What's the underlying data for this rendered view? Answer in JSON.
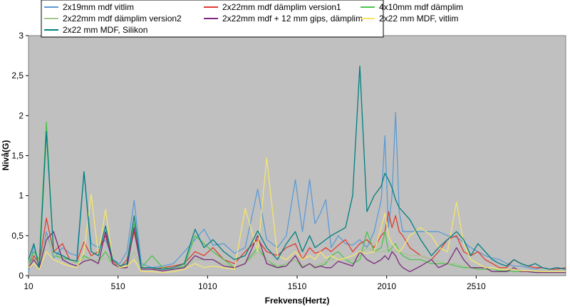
{
  "chart_data": {
    "type": "line",
    "title": "",
    "xlabel": "Frekvens(Hertz)",
    "ylabel": "Nivå(G)",
    "xlim": [
      10,
      3010
    ],
    "ylim": [
      0,
      3
    ],
    "x_ticks": [
      10,
      510,
      1010,
      1510,
      2010,
      2510
    ],
    "x_tick_labels": [
      "10",
      "510",
      "1010",
      "1510",
      "2010",
      "2510"
    ],
    "y_ticks": [
      0,
      0.5,
      1,
      1.5,
      2,
      2.5,
      3
    ],
    "y_tick_labels": [
      "0",
      "0,5",
      "1",
      "1,5",
      "2",
      "2,5",
      "3"
    ],
    "grid": false,
    "plot_background": "#c0c0c0",
    "legend_position": "top",
    "series": [
      {
        "name": "2x19mm mdf vitlim",
        "color": "#5b9bd5",
        "x": [
          10,
          40,
          70,
          110,
          150,
          200,
          240,
          280,
          320,
          360,
          400,
          440,
          480,
          520,
          560,
          600,
          640,
          700,
          760,
          820,
          880,
          940,
          990,
          1040,
          1100,
          1160,
          1220,
          1290,
          1340,
          1400,
          1450,
          1500,
          1540,
          1580,
          1610,
          1640,
          1670,
          1700,
          1740,
          1780,
          1820,
          1860,
          1900,
          1940,
          1980,
          2000,
          2020,
          2040,
          2060,
          2080,
          2100,
          2140,
          2200,
          2260,
          2300,
          2350,
          2400,
          2440,
          2480,
          2520,
          2560,
          2600,
          2640,
          2680,
          2720,
          2760,
          2800,
          2840,
          2880,
          2920,
          2960,
          3010
        ],
        "y": [
          0.05,
          0.38,
          0.1,
          0.55,
          0.22,
          0.35,
          0.28,
          0.25,
          1.3,
          0.4,
          0.35,
          0.45,
          0.2,
          0.15,
          0.3,
          0.94,
          0.15,
          0.1,
          0.12,
          0.15,
          0.3,
          0.45,
          0.58,
          0.38,
          0.4,
          0.28,
          0.35,
          1.08,
          0.45,
          0.35,
          0.5,
          1.2,
          0.55,
          1.2,
          0.65,
          0.78,
          0.95,
          0.35,
          0.5,
          0.4,
          0.38,
          0.45,
          0.35,
          0.55,
          0.95,
          1.75,
          0.6,
          1.0,
          2.04,
          0.8,
          0.55,
          0.55,
          0.55,
          0.55,
          0.55,
          0.5,
          0.48,
          0.42,
          0.35,
          0.3,
          0.25,
          0.22,
          0.2,
          0.15,
          0.12,
          0.12,
          0.1,
          0.08,
          0.1,
          0.08,
          0.1,
          0.08
        ]
      },
      {
        "name": "2x22mm mdf dämplim version1",
        "color": "#e03c31",
        "x": [
          10,
          40,
          70,
          110,
          150,
          200,
          240,
          280,
          320,
          360,
          400,
          440,
          480,
          520,
          560,
          600,
          640,
          700,
          760,
          820,
          880,
          940,
          990,
          1040,
          1100,
          1160,
          1220,
          1290,
          1340,
          1400,
          1450,
          1500,
          1540,
          1580,
          1610,
          1640,
          1670,
          1700,
          1740,
          1780,
          1820,
          1860,
          1900,
          1940,
          1980,
          2000,
          2020,
          2040,
          2060,
          2080,
          2100,
          2140,
          2200,
          2260,
          2300,
          2350,
          2400,
          2440,
          2480,
          2520,
          2560,
          2600,
          2640,
          2680,
          2720,
          2760,
          2800,
          2840,
          2880,
          2920,
          2960,
          3010
        ],
        "y": [
          0.1,
          0.25,
          0.15,
          0.72,
          0.3,
          0.4,
          0.2,
          0.18,
          0.42,
          0.25,
          0.3,
          0.5,
          0.18,
          0.1,
          0.2,
          0.55,
          0.1,
          0.08,
          0.1,
          0.12,
          0.15,
          0.3,
          0.25,
          0.35,
          0.2,
          0.15,
          0.3,
          0.45,
          0.3,
          0.25,
          0.35,
          0.4,
          0.2,
          0.35,
          0.28,
          0.3,
          0.35,
          0.3,
          0.38,
          0.45,
          0.3,
          0.4,
          0.45,
          0.35,
          0.5,
          0.55,
          0.8,
          0.6,
          0.75,
          0.55,
          0.5,
          0.35,
          0.25,
          0.2,
          0.3,
          0.45,
          0.5,
          0.3,
          0.25,
          0.3,
          0.2,
          0.15,
          0.1,
          0.1,
          0.2,
          0.15,
          0.12,
          0.1,
          0.1,
          0.08,
          0.08,
          0.1
        ]
      },
      {
        "name": "4x10mm mdf dämplim",
        "color": "#4cc34c",
        "x": [
          10,
          40,
          70,
          110,
          150,
          200,
          240,
          280,
          320,
          360,
          400,
          440,
          480,
          520,
          560,
          600,
          640,
          700,
          760,
          820,
          880,
          940,
          990,
          1040,
          1100,
          1160,
          1220,
          1290,
          1340,
          1400,
          1450,
          1500,
          1540,
          1580,
          1610,
          1640,
          1670,
          1700,
          1740,
          1780,
          1820,
          1860,
          1900,
          1940,
          1980,
          2000,
          2020,
          2040,
          2060,
          2080,
          2100,
          2140,
          2200,
          2260,
          2300,
          2350,
          2400,
          2440,
          2480,
          2520,
          2560,
          2600,
          2640,
          2680,
          2720,
          2760,
          2800,
          2840,
          2880,
          2920,
          2960,
          3010
        ],
        "y": [
          0.15,
          0.3,
          0.2,
          1.92,
          0.25,
          0.22,
          0.2,
          0.15,
          0.25,
          0.2,
          0.18,
          0.3,
          0.15,
          0.1,
          0.12,
          0.65,
          0.1,
          0.25,
          0.1,
          0.08,
          0.12,
          0.5,
          0.4,
          0.3,
          0.2,
          0.1,
          0.15,
          0.35,
          0.2,
          0.1,
          0.15,
          0.2,
          0.1,
          0.15,
          0.1,
          0.12,
          0.15,
          0.25,
          0.3,
          0.2,
          0.15,
          0.2,
          0.55,
          0.3,
          0.35,
          0.55,
          0.3,
          0.35,
          0.4,
          0.3,
          0.25,
          0.2,
          0.2,
          0.15,
          0.15,
          0.15,
          0.12,
          0.1,
          0.1,
          0.08,
          0.08,
          0.08,
          0.06,
          0.06,
          0.05,
          0.05,
          0.05,
          0.04,
          0.04,
          0.04,
          0.04,
          0.04
        ]
      },
      {
        "name": "2x22mm mdf dämplim version2",
        "color": "#a5c48f",
        "x": [
          10,
          40,
          70,
          110,
          150,
          200,
          240,
          280,
          320,
          360,
          400,
          440,
          480,
          520,
          560,
          600,
          640,
          700,
          760,
          820,
          880,
          940,
          990,
          1040,
          1100,
          1160,
          1220,
          1290,
          1340,
          1400,
          1450,
          1500,
          1540,
          1580,
          1610,
          1640,
          1670,
          1700,
          1740,
          1780,
          1820,
          1860,
          1900,
          1940,
          1980,
          2000,
          2020,
          2040,
          2060,
          2080,
          2100,
          2140,
          2200,
          2260,
          2300,
          2350,
          2400,
          2440,
          2480,
          2520,
          2560,
          2600,
          2640,
          2680,
          2720,
          2760,
          2800,
          2840,
          2880,
          2920,
          2960,
          3010
        ],
        "y": [
          0.12,
          0.22,
          0.15,
          0.5,
          0.25,
          0.25,
          0.2,
          0.15,
          0.22,
          0.2,
          0.18,
          0.22,
          0.15,
          0.1,
          0.12,
          0.3,
          0.1,
          0.08,
          0.08,
          0.08,
          0.1,
          0.2,
          0.2,
          0.2,
          0.15,
          0.1,
          0.15,
          0.3,
          0.2,
          0.12,
          0.15,
          0.2,
          0.12,
          0.15,
          0.12,
          0.15,
          0.18,
          0.2,
          0.22,
          0.2,
          0.2,
          0.25,
          0.35,
          0.3,
          0.3,
          0.3,
          0.35,
          0.3,
          0.3,
          0.3,
          0.28,
          0.25,
          0.25,
          0.2,
          0.18,
          0.15,
          0.15,
          0.12,
          0.1,
          0.1,
          0.1,
          0.08,
          0.08,
          0.08,
          0.08,
          0.06,
          0.06,
          0.06,
          0.06,
          0.05,
          0.05,
          0.05
        ]
      },
      {
        "name": "2x22mm mdf + 12 mm gips, dämplim",
        "color": "#7b2a7b",
        "x": [
          10,
          40,
          70,
          110,
          150,
          200,
          240,
          280,
          320,
          360,
          400,
          440,
          480,
          520,
          560,
          600,
          640,
          700,
          760,
          820,
          880,
          940,
          990,
          1040,
          1100,
          1160,
          1220,
          1290,
          1340,
          1400,
          1450,
          1500,
          1540,
          1580,
          1610,
          1640,
          1670,
          1700,
          1740,
          1780,
          1820,
          1860,
          1900,
          1940,
          1980,
          2000,
          2020,
          2040,
          2060,
          2080,
          2100,
          2140,
          2200,
          2260,
          2300,
          2350,
          2400,
          2440,
          2480,
          2520,
          2560,
          2600,
          2640,
          2680,
          2720,
          2760,
          2800,
          2840,
          2880,
          2920,
          2960,
          3010
        ],
        "y": [
          0.1,
          0.2,
          0.1,
          0.45,
          0.55,
          0.2,
          0.15,
          0.12,
          0.18,
          0.2,
          0.15,
          0.55,
          0.15,
          0.1,
          0.1,
          0.6,
          0.08,
          0.08,
          0.06,
          0.08,
          0.1,
          0.25,
          0.2,
          0.2,
          0.12,
          0.1,
          0.15,
          0.5,
          0.15,
          0.1,
          0.12,
          0.25,
          0.1,
          0.15,
          0.1,
          0.12,
          0.1,
          0.1,
          0.18,
          0.15,
          0.12,
          0.3,
          0.2,
          0.15,
          0.2,
          0.25,
          0.2,
          0.3,
          0.25,
          0.15,
          0.1,
          0.05,
          0.12,
          0.2,
          0.1,
          0.15,
          0.35,
          0.2,
          0.1,
          0.1,
          0.1,
          0.05,
          0.05,
          0.05,
          0.1,
          0.05,
          0.05,
          0.04,
          0.04,
          0.04,
          0.04,
          0.04
        ]
      },
      {
        "name": "2x22 mm MDF, vitlim",
        "color": "#f5e66a",
        "x": [
          10,
          40,
          70,
          110,
          150,
          200,
          240,
          280,
          320,
          360,
          400,
          440,
          480,
          520,
          560,
          600,
          640,
          700,
          760,
          820,
          880,
          940,
          990,
          1040,
          1100,
          1160,
          1220,
          1290,
          1340,
          1400,
          1450,
          1500,
          1540,
          1580,
          1610,
          1640,
          1670,
          1700,
          1740,
          1780,
          1820,
          1860,
          1900,
          1940,
          1980,
          2000,
          2020,
          2040,
          2060,
          2080,
          2100,
          2140,
          2200,
          2260,
          2300,
          2350,
          2400,
          2440,
          2480,
          2520,
          2560,
          2600,
          2640,
          2680,
          2720,
          2760,
          2800,
          2840,
          2880,
          2920,
          2960,
          3010
        ],
        "y": [
          0.1,
          0.15,
          0.08,
          0.3,
          0.2,
          0.15,
          0.12,
          0.1,
          0.3,
          1.02,
          0.25,
          0.83,
          0.2,
          0.1,
          0.12,
          0.2,
          0.05,
          0.05,
          0.04,
          0.05,
          0.08,
          0.15,
          0.1,
          0.12,
          0.1,
          0.08,
          0.84,
          0.3,
          1.47,
          0.25,
          0.2,
          0.3,
          0.2,
          0.25,
          0.2,
          0.3,
          0.22,
          0.25,
          0.2,
          0.22,
          0.25,
          0.3,
          0.28,
          0.3,
          0.6,
          0.78,
          0.5,
          0.4,
          0.35,
          0.3,
          0.35,
          0.5,
          0.6,
          0.5,
          0.35,
          0.3,
          0.92,
          0.4,
          0.2,
          0.15,
          0.1,
          0.1,
          0.08,
          0.08,
          0.08,
          0.06,
          0.06,
          0.06,
          0.05,
          0.05,
          0.05,
          0.05
        ]
      },
      {
        "name": "2x22 mm MDF, Silikon",
        "color": "#007f7f",
        "x": [
          10,
          40,
          70,
          110,
          150,
          200,
          240,
          280,
          320,
          360,
          400,
          440,
          480,
          520,
          560,
          600,
          640,
          700,
          760,
          820,
          880,
          940,
          990,
          1040,
          1100,
          1160,
          1220,
          1290,
          1340,
          1400,
          1450,
          1500,
          1540,
          1580,
          1610,
          1640,
          1670,
          1700,
          1740,
          1780,
          1820,
          1860,
          1900,
          1940,
          1980,
          2000,
          2020,
          2040,
          2060,
          2080,
          2100,
          2140,
          2200,
          2260,
          2300,
          2350,
          2400,
          2440,
          2480,
          2520,
          2560,
          2600,
          2640,
          2680,
          2720,
          2760,
          2800,
          2840,
          2880,
          2920,
          2960,
          3010
        ],
        "y": [
          0.2,
          0.4,
          0.1,
          1.8,
          0.3,
          0.25,
          0.2,
          0.18,
          1.3,
          0.3,
          0.25,
          0.62,
          0.2,
          0.12,
          0.15,
          0.75,
          0.1,
          0.1,
          0.08,
          0.1,
          0.15,
          0.58,
          0.35,
          0.45,
          0.3,
          0.2,
          0.25,
          0.56,
          0.35,
          0.2,
          0.4,
          0.55,
          0.3,
          0.5,
          0.35,
          0.4,
          0.45,
          0.5,
          0.55,
          0.6,
          1.0,
          2.62,
          0.8,
          1.0,
          1.12,
          1.28,
          1.2,
          1.1,
          0.95,
          0.85,
          0.8,
          0.7,
          0.45,
          0.25,
          0.35,
          0.45,
          0.55,
          0.45,
          0.25,
          0.4,
          0.3,
          0.2,
          0.15,
          0.12,
          0.2,
          0.15,
          0.12,
          0.15,
          0.1,
          0.08,
          0.1,
          0.08
        ]
      }
    ]
  }
}
